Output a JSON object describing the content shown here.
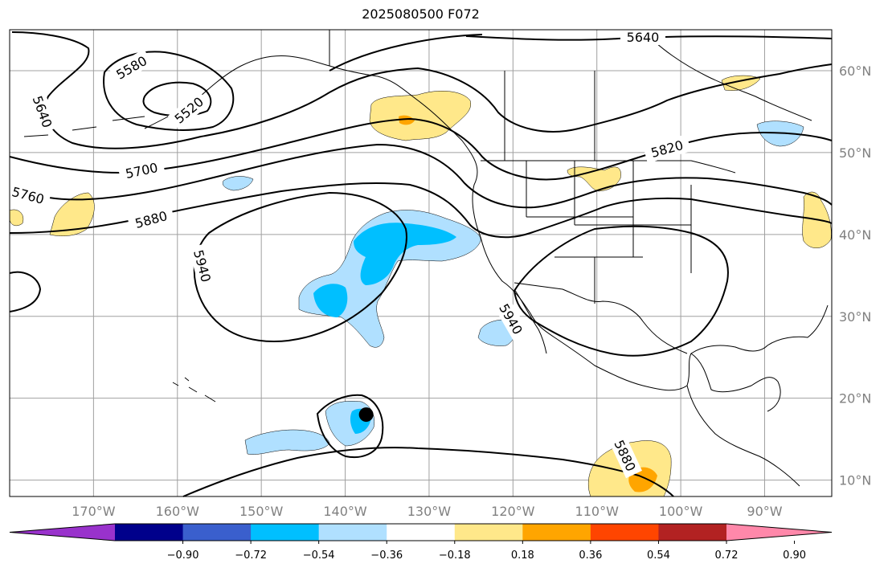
{
  "title": "2025080500 F072",
  "map": {
    "projection": "PlateCarree",
    "lon_range": [
      -180,
      -82
    ],
    "lat_range": [
      8,
      65
    ],
    "gridlines": true,
    "lat_ticks": [
      "60°N",
      "50°N",
      "40°N",
      "30°N",
      "20°N",
      "10°N"
    ],
    "lon_ticks": [
      "170°W",
      "160°W",
      "150°W",
      "140°W",
      "130°W",
      "120°W",
      "110°W",
      "100°W",
      "90°W"
    ],
    "contour_labels": [
      "5640",
      "5580",
      "5520",
      "5640",
      "5700",
      "5760",
      "5880",
      "5940",
      "5820",
      "5940",
      "5880"
    ],
    "marker": {
      "lon": -137.5,
      "lat": 18,
      "color": "#000000"
    }
  },
  "colorbar": {
    "ticks": [
      "−0.90",
      "−0.72",
      "−0.54",
      "−0.36",
      "−0.18",
      "0.18",
      "0.36",
      "0.54",
      "0.72",
      "0.90"
    ],
    "colors": [
      "#9932cc",
      "#00008b",
      "#3a5fcd",
      "#00bfff",
      "#b0e0ff",
      "#ffffff",
      "#ffe88a",
      "#ffa500",
      "#ff4500",
      "#b22222",
      "#ff88aa"
    ],
    "extend": "both"
  },
  "colors": {
    "grid": "#a0a0a0",
    "contour": "#000000",
    "tick_label": "#808080"
  }
}
